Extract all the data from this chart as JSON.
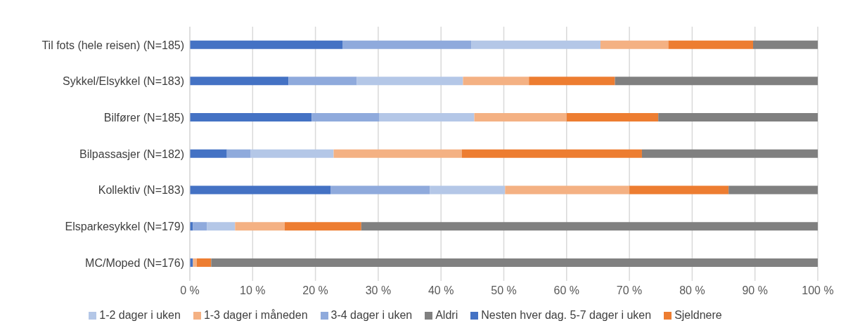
{
  "chart_data": {
    "type": "bar",
    "orientation": "horizontal",
    "stacked": true,
    "categories": [
      "Til fots (hele reisen) (N=185)",
      "Sykkel/Elsykkel (N=183)",
      "Bilfører (N=185)",
      "Bilpassasjer (N=182)",
      "Kollektiv (N=183)",
      "Elsparkesykkel (N=179)",
      "MC/Moped (N=176)"
    ],
    "series": [
      {
        "name": "Nesten hver dag. 5-7 dager i uken",
        "color": "#4472c4",
        "values": [
          24.3,
          15.7,
          19.4,
          5.9,
          22.4,
          0.5,
          0.5
        ]
      },
      {
        "name": "3-4 dager i uken",
        "color": "#8faadc",
        "values": [
          20.5,
          10.9,
          10.8,
          3.8,
          15.8,
          2.2,
          0
        ]
      },
      {
        "name": "1-2 dager i uken",
        "color": "#b4c7e7",
        "values": [
          20.6,
          16.9,
          15.1,
          13.2,
          12.0,
          4.5,
          0
        ]
      },
      {
        "name": "1-3 dager i måneden",
        "color": "#f4b183",
        "values": [
          10.8,
          10.5,
          14.7,
          20.4,
          19.8,
          7.9,
          0.6
        ]
      },
      {
        "name": "Sjeldnere",
        "color": "#ed7d31",
        "values": [
          13.5,
          13.7,
          14.6,
          28.7,
          15.8,
          12.2,
          2.3
        ]
      },
      {
        "name": "Aldri",
        "color": "#808080",
        "values": [
          10.3,
          32.3,
          25.4,
          28.0,
          14.2,
          72.7,
          96.6
        ]
      }
    ],
    "xlim": [
      0,
      100
    ],
    "xticks": [
      {
        "value": 0,
        "label": "0 %"
      },
      {
        "value": 10,
        "label": "10 %"
      },
      {
        "value": 20,
        "label": "20 %"
      },
      {
        "value": 30,
        "label": "30 %"
      },
      {
        "value": 40,
        "label": "40 %"
      },
      {
        "value": 50,
        "label": "50 %"
      },
      {
        "value": 60,
        "label": "60 %"
      },
      {
        "value": 70,
        "label": "70 %"
      },
      {
        "value": 80,
        "label": "80 %"
      },
      {
        "value": 90,
        "label": "90 %"
      },
      {
        "value": 100,
        "label": "100 %"
      }
    ],
    "grid": "x",
    "legend": "bottom"
  }
}
